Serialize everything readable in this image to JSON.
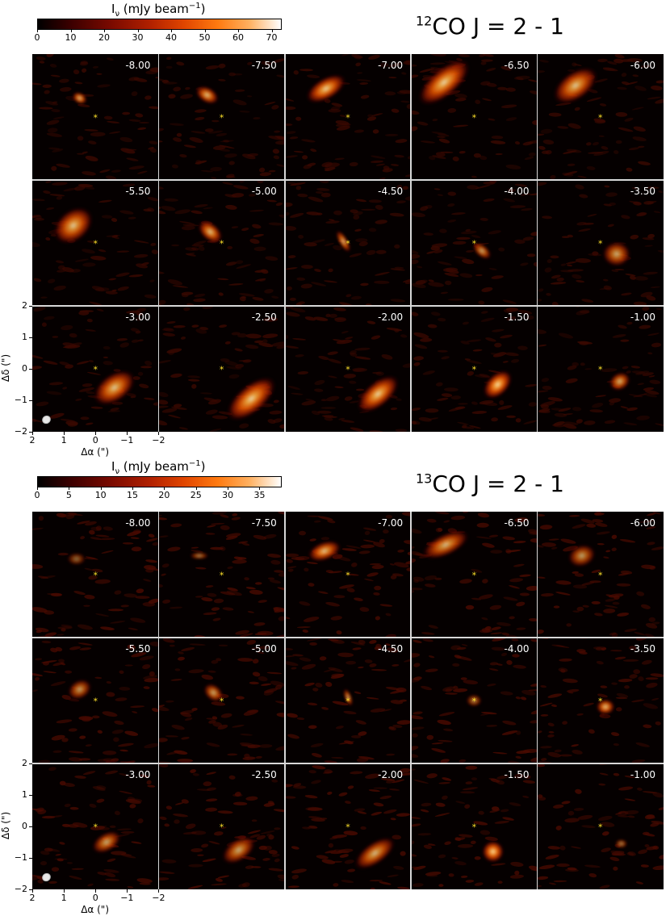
{
  "chart_data": [
    {
      "type": "heatmap",
      "title": "CO J = 2 - 1",
      "title_isotope": "12",
      "colorbar": {
        "label": "I",
        "label_sub": "ν",
        "label_unit": " (mJy beam",
        "label_exp": "−1",
        "label_close": ")",
        "ticks": [
          "0",
          "10",
          "20",
          "30",
          "40",
          "50",
          "60",
          "70"
        ],
        "range": [
          0,
          73
        ],
        "colormap": "gist_heat"
      },
      "panel_labels": [
        "-8.00",
        "-7.50",
        "-7.00",
        "-6.50",
        "-6.00",
        "-5.50",
        "-5.00",
        "-4.50",
        "-4.00",
        "-3.50",
        "-3.00",
        "-2.50",
        "-2.00",
        "-1.50",
        "-1.00"
      ],
      "xlabel": "Δα (\")",
      "ylabel": "Δδ (\")",
      "xticks": [
        "2",
        "1",
        "0",
        "−1",
        "−2"
      ],
      "yticks": [
        "2",
        "1",
        "0",
        "−1",
        "−2"
      ],
      "xlim": [
        2,
        -2
      ],
      "ylim": [
        -2,
        2
      ],
      "star_marker": "*",
      "emission": [
        [
          {
            "x": 0.5,
            "y": 0.6,
            "a": 30,
            "w": 0.25,
            "h": 0.18,
            "i": 0.85
          }
        ],
        [
          {
            "x": 0.45,
            "y": 0.7,
            "a": 30,
            "w": 0.4,
            "h": 0.25,
            "i": 0.85
          }
        ],
        [
          {
            "x": 0.7,
            "y": 0.9,
            "a": -30,
            "w": 0.7,
            "h": 0.35,
            "i": 0.9
          }
        ],
        [
          {
            "x": 0.95,
            "y": 1.1,
            "a": -40,
            "w": 1.0,
            "h": 0.45,
            "i": 0.9
          }
        ],
        [
          {
            "x": 0.8,
            "y": 1.0,
            "a": -35,
            "w": 0.8,
            "h": 0.45,
            "i": 0.85
          }
        ],
        [
          {
            "x": 0.7,
            "y": 0.55,
            "a": -40,
            "w": 0.7,
            "h": 0.5,
            "i": 0.85
          }
        ],
        [
          {
            "x": 0.35,
            "y": 0.35,
            "a": 40,
            "w": 0.45,
            "h": 0.28,
            "i": 0.85
          }
        ],
        [
          {
            "x": 0.15,
            "y": 0.05,
            "a": 60,
            "w": 0.4,
            "h": 0.15,
            "i": 0.8
          }
        ],
        [
          {
            "x": -0.25,
            "y": -0.25,
            "a": 40,
            "w": 0.35,
            "h": 0.2,
            "i": 0.75
          }
        ],
        [
          {
            "x": -0.5,
            "y": -0.35,
            "a": 0,
            "w": 0.45,
            "h": 0.4,
            "i": 0.75
          }
        ],
        [
          {
            "x": -0.6,
            "y": -0.6,
            "a": -35,
            "w": 0.75,
            "h": 0.45,
            "i": 0.85
          }
        ],
        [
          {
            "x": -0.95,
            "y": -0.95,
            "a": -40,
            "w": 0.95,
            "h": 0.45,
            "i": 0.9
          }
        ],
        [
          {
            "x": -0.95,
            "y": -0.8,
            "a": -40,
            "w": 0.8,
            "h": 0.4,
            "i": 0.9
          }
        ],
        [
          {
            "x": -0.75,
            "y": -0.5,
            "a": -45,
            "w": 0.55,
            "h": 0.35,
            "i": 0.95
          }
        ],
        [
          {
            "x": -0.6,
            "y": -0.4,
            "a": -30,
            "w": 0.35,
            "h": 0.28,
            "i": 0.8
          }
        ]
      ]
    },
    {
      "type": "heatmap",
      "title": "CO J = 2 - 1",
      "title_isotope": "13",
      "colorbar": {
        "label": "I",
        "label_sub": "ν",
        "label_unit": " (mJy beam",
        "label_exp": "−1",
        "label_close": ")",
        "ticks": [
          "0",
          "5",
          "10",
          "15",
          "20",
          "25",
          "30",
          "35"
        ],
        "range": [
          0,
          38.5
        ],
        "colormap": "gist_heat"
      },
      "panel_labels": [
        "-8.00",
        "-7.50",
        "-7.00",
        "-6.50",
        "-6.00",
        "-5.50",
        "-5.00",
        "-4.50",
        "-4.00",
        "-3.50",
        "-3.00",
        "-2.50",
        "-2.00",
        "-1.50",
        "-1.00"
      ],
      "xlabel": "Δα (\")",
      "ylabel": "Δδ (\")",
      "xticks": [
        "2",
        "1",
        "0",
        "−1",
        "−2"
      ],
      "yticks": [
        "2",
        "1",
        "0",
        "−1",
        "−2"
      ],
      "xlim": [
        2,
        -2
      ],
      "ylim": [
        -2,
        2
      ],
      "star_marker": "*",
      "emission": [
        [
          {
            "x": 0.6,
            "y": 0.5,
            "a": 0,
            "w": 0.3,
            "h": 0.2,
            "i": 0.5
          }
        ],
        [
          {
            "x": 0.7,
            "y": 0.6,
            "a": 0,
            "w": 0.3,
            "h": 0.12,
            "i": 0.6
          }
        ],
        [
          {
            "x": 0.75,
            "y": 0.75,
            "a": -20,
            "w": 0.55,
            "h": 0.3,
            "i": 0.85
          }
        ],
        [
          {
            "x": 0.9,
            "y": 0.95,
            "a": -25,
            "w": 0.8,
            "h": 0.35,
            "i": 0.8
          }
        ],
        [
          {
            "x": 0.6,
            "y": 0.6,
            "a": -20,
            "w": 0.45,
            "h": 0.35,
            "i": 0.7
          }
        ],
        [
          {
            "x": 0.5,
            "y": 0.35,
            "a": -30,
            "w": 0.4,
            "h": 0.3,
            "i": 0.7
          }
        ],
        [
          {
            "x": 0.25,
            "y": 0.25,
            "a": 40,
            "w": 0.35,
            "h": 0.25,
            "i": 0.75
          }
        ],
        [
          {
            "x": 0.0,
            "y": 0.1,
            "a": 70,
            "w": 0.3,
            "h": 0.12,
            "i": 0.75
          }
        ],
        [
          {
            "x": 0.0,
            "y": 0.0,
            "a": 0,
            "w": 0.25,
            "h": 0.2,
            "i": 0.6
          }
        ],
        [
          {
            "x": -0.15,
            "y": -0.2,
            "a": 0,
            "w": 0.3,
            "h": 0.25,
            "i": 0.85
          }
        ],
        [
          {
            "x": -0.35,
            "y": -0.5,
            "a": -30,
            "w": 0.5,
            "h": 0.3,
            "i": 0.75
          }
        ],
        [
          {
            "x": -0.55,
            "y": -0.75,
            "a": -35,
            "w": 0.6,
            "h": 0.35,
            "i": 0.75
          }
        ],
        [
          {
            "x": -0.85,
            "y": -0.85,
            "a": -35,
            "w": 0.75,
            "h": 0.35,
            "i": 0.8
          }
        ],
        [
          {
            "x": -0.6,
            "y": -0.8,
            "a": -20,
            "w": 0.35,
            "h": 0.35,
            "i": 0.95
          }
        ],
        [
          {
            "x": -0.65,
            "y": -0.55,
            "a": 0,
            "w": 0.2,
            "h": 0.15,
            "i": 0.6
          }
        ]
      ]
    }
  ]
}
